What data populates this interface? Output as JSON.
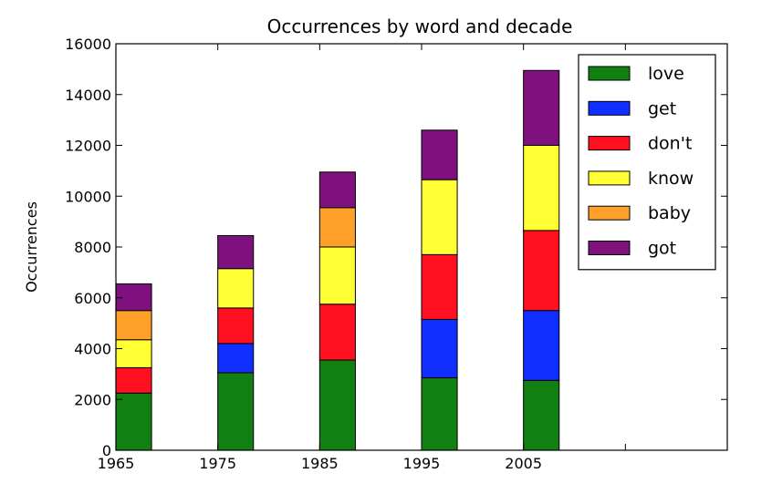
{
  "chart_data": {
    "type": "bar",
    "stacked": true,
    "title": "Occurrences by word and decade",
    "xlabel": "",
    "ylabel": "Occurrences",
    "xlim": [
      1965,
      2025
    ],
    "ylim": [
      0,
      16000
    ],
    "x_ticks": [
      1965,
      1975,
      1985,
      1995,
      2005,
      2015
    ],
    "x_tick_labels": [
      "1965",
      "1975",
      "1985",
      "1995",
      "2005",
      ""
    ],
    "y_ticks": [
      0,
      2000,
      4000,
      6000,
      8000,
      10000,
      12000,
      14000,
      16000
    ],
    "y_tick_labels": [
      "0",
      "2000",
      "4000",
      "6000",
      "8000",
      "10000",
      "12000",
      "14000",
      "16000"
    ],
    "bar_width": 3.5,
    "categories": [
      1965,
      1975,
      1985,
      1995,
      2005
    ],
    "series": [
      {
        "name": "love",
        "color": "#127f12",
        "values": [
          2250,
          3050,
          3550,
          2850,
          2750
        ]
      },
      {
        "name": "get",
        "color": "#0f2eff",
        "values": [
          0,
          1150,
          0,
          2300,
          2750
        ]
      },
      {
        "name": "don't",
        "color": "#ff0f1f",
        "values": [
          1000,
          1400,
          2200,
          2550,
          3150
        ]
      },
      {
        "name": "know",
        "color": "#ffff33",
        "values": [
          1100,
          1550,
          2250,
          2950,
          3350
        ]
      },
      {
        "name": "baby",
        "color": "#ffa02a",
        "values": [
          1150,
          0,
          1550,
          0,
          0
        ]
      },
      {
        "name": "got",
        "color": "#7f117f",
        "values": [
          1050,
          1300,
          1400,
          1950,
          2950
        ]
      }
    ],
    "grid": false,
    "legend": "top-right"
  }
}
